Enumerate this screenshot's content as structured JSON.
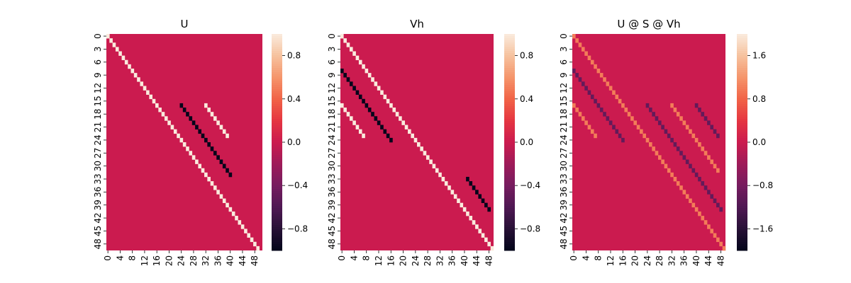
{
  "figure": {
    "background": "#ffffff"
  },
  "chart_data": [
    {
      "type": "heatmap",
      "title": "U",
      "rows": 50,
      "cols": 51,
      "background_value": 0,
      "x_tick_labels": [
        "0",
        "4",
        "8",
        "12",
        "16",
        "20",
        "24",
        "28",
        "32",
        "36",
        "40",
        "44",
        "48"
      ],
      "x_tick_values": [
        0,
        4,
        8,
        12,
        16,
        20,
        24,
        28,
        32,
        36,
        40,
        44,
        48
      ],
      "y_tick_labels": [
        "0",
        "3",
        "6",
        "9",
        "12",
        "15",
        "18",
        "21",
        "24",
        "27",
        "30",
        "33",
        "36",
        "39",
        "42",
        "45",
        "48"
      ],
      "y_tick_values": [
        0,
        3,
        6,
        9,
        12,
        15,
        18,
        21,
        24,
        27,
        30,
        33,
        36,
        39,
        42,
        45,
        48
      ],
      "colorbar": {
        "min": -1.0,
        "max": 1.0,
        "tick_values": [
          -0.8,
          -0.4,
          0.0,
          0.4,
          0.8
        ],
        "tick_labels": [
          "−0.8",
          "−0.4",
          "0.0",
          "0.4",
          "0.8"
        ]
      },
      "diagonals": [
        {
          "row_start": 0,
          "col_start": 0,
          "length": 50,
          "value": 1
        },
        {
          "row_start": 16,
          "col_start": 24,
          "length": 17,
          "value": -1
        },
        {
          "row_start": 16,
          "col_start": 32,
          "length": 8,
          "value": 1
        }
      ]
    },
    {
      "type": "heatmap",
      "title": "Vh",
      "rows": 50,
      "cols": 50,
      "background_value": 0,
      "x_tick_labels": [
        "0",
        "4",
        "8",
        "12",
        "16",
        "20",
        "24",
        "28",
        "32",
        "36",
        "40",
        "44",
        "48"
      ],
      "x_tick_values": [
        0,
        4,
        8,
        12,
        16,
        20,
        24,
        28,
        32,
        36,
        40,
        44,
        48
      ],
      "y_tick_labels": [
        "0",
        "3",
        "6",
        "9",
        "12",
        "15",
        "18",
        "21",
        "24",
        "27",
        "30",
        "33",
        "36",
        "39",
        "42",
        "45",
        "48"
      ],
      "y_tick_values": [
        0,
        3,
        6,
        9,
        12,
        15,
        18,
        21,
        24,
        27,
        30,
        33,
        36,
        39,
        42,
        45,
        48
      ],
      "colorbar": {
        "min": -1.0,
        "max": 1.0,
        "tick_values": [
          -0.8,
          -0.4,
          0.0,
          0.4,
          0.8
        ],
        "tick_labels": [
          "−0.8",
          "−0.4",
          "0.0",
          "0.4",
          "0.8"
        ]
      },
      "diagonals": [
        {
          "row_start": 0,
          "col_start": 0,
          "length": 50,
          "value": 1
        },
        {
          "row_start": 8,
          "col_start": 0,
          "length": 17,
          "value": -1
        },
        {
          "row_start": 16,
          "col_start": 0,
          "length": 8,
          "value": 1
        },
        {
          "row_start": 33,
          "col_start": 41,
          "length": 8,
          "value": -1
        }
      ]
    },
    {
      "type": "heatmap",
      "title": "U @ S @ Vh",
      "rows": 50,
      "cols": 50,
      "background_value": 0,
      "x_tick_labels": [
        "0",
        "4",
        "8",
        "12",
        "16",
        "20",
        "24",
        "28",
        "32",
        "36",
        "40",
        "44",
        "48"
      ],
      "x_tick_values": [
        0,
        4,
        8,
        12,
        16,
        20,
        24,
        28,
        32,
        36,
        40,
        44,
        48
      ],
      "y_tick_labels": [
        "0",
        "3",
        "6",
        "9",
        "12",
        "15",
        "18",
        "21",
        "24",
        "27",
        "30",
        "33",
        "36",
        "39",
        "42",
        "45",
        "48"
      ],
      "y_tick_values": [
        0,
        3,
        6,
        9,
        12,
        15,
        18,
        21,
        24,
        27,
        30,
        33,
        36,
        39,
        42,
        45,
        48
      ],
      "colorbar": {
        "min": -2.0,
        "max": 2.0,
        "tick_values": [
          -1.6,
          -0.8,
          0.0,
          0.8,
          1.6
        ],
        "tick_labels": [
          "−1.6",
          "−0.8",
          "0.0",
          "0.8",
          "1.6"
        ]
      },
      "diagonals": [
        {
          "row_start": 0,
          "col_start": 0,
          "length": 50,
          "value": 1
        },
        {
          "row_start": 8,
          "col_start": 0,
          "length": 17,
          "value": -1
        },
        {
          "row_start": 16,
          "col_start": 0,
          "length": 8,
          "value": 1
        },
        {
          "row_start": 16,
          "col_start": 24,
          "length": 17,
          "value": -1
        },
        {
          "row_start": 16,
          "col_start": 32,
          "length": 8,
          "value": 1
        },
        {
          "row_start": 16,
          "col_start": 40,
          "length": 8,
          "value": -1
        },
        {
          "row_start": 24,
          "col_start": 40,
          "length": 8,
          "value": 1
        },
        {
          "row_start": 33,
          "col_start": 41,
          "length": 8,
          "value": -1
        }
      ]
    }
  ]
}
